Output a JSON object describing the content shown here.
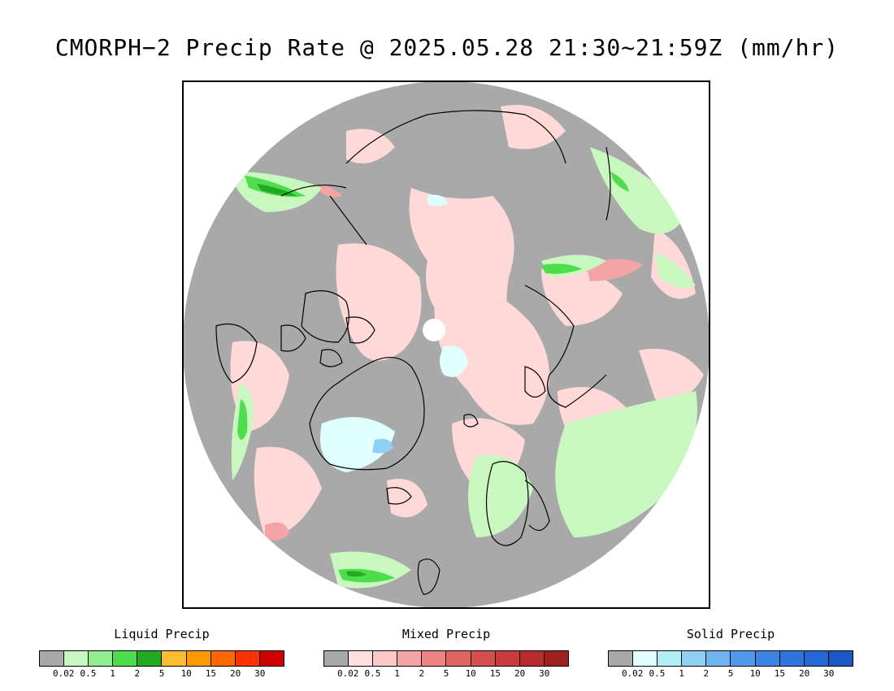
{
  "title": "CMORPH−2 Precip Rate @ 2025.05.28 21:30~21:59Z (mm/hr)",
  "colors": {
    "no_precip": "#a9a9a9",
    "coastline": "#000000",
    "background": "#ffffff"
  },
  "legends": [
    {
      "title": "Liquid Precip",
      "colors": [
        "#a9a9a9",
        "#c8f8c0",
        "#90ee90",
        "#4ddd4d",
        "#22aa22",
        "#ffbb33",
        "#ff9900",
        "#ff6600",
        "#ff3300",
        "#cc0000"
      ],
      "ticks": [
        "0.02",
        "0.5",
        "1",
        "2",
        "5",
        "10",
        "15",
        "20",
        "30"
      ]
    },
    {
      "title": "Mixed Precip",
      "colors": [
        "#a9a9a9",
        "#ffe0e0",
        "#fcc8c8",
        "#f4a4a4",
        "#ec8484",
        "#e06464",
        "#d45050",
        "#c83c3c",
        "#b82c2c",
        "#a02020"
      ],
      "ticks": [
        "0.02",
        "0.5",
        "1",
        "2",
        "5",
        "10",
        "15",
        "20",
        "30"
      ]
    },
    {
      "title": "Solid Precip",
      "colors": [
        "#a9a9a9",
        "#e0ffff",
        "#b0eef8",
        "#90cff4",
        "#70b4f0",
        "#5098ea",
        "#3c84e4",
        "#2e74dc",
        "#2468d4",
        "#1c58c4"
      ],
      "ticks": [
        "0.02",
        "0.5",
        "1",
        "2",
        "5",
        "10",
        "15",
        "20",
        "30"
      ]
    }
  ]
}
